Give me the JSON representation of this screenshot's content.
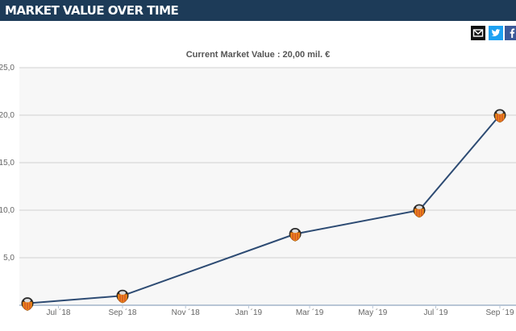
{
  "header": {
    "title": "MARKET VALUE OVER TIME"
  },
  "share": {
    "icons": [
      "mail-icon",
      "twitter-icon",
      "facebook-icon"
    ]
  },
  "colors": {
    "header": "#1d3b58",
    "line": "#2d4b73",
    "plot_bg": "#f7f7f7",
    "grid": "#d0d0d0",
    "badge_orange": "#f08a1c",
    "badge_dark": "#2b2b2b"
  },
  "chart_data": {
    "type": "line",
    "title": "Current Market Value : 20,00 mil. €",
    "xlabel": "",
    "ylabel": "",
    "ylim": [
      0,
      25
    ],
    "grid": true,
    "x_tick_labels": [
      "Jul ´18",
      "Sep ´18",
      "Nov ´18",
      "Jan ´19",
      "Mar ´19",
      "May ´19",
      "Jul ´19",
      "Sep ´19"
    ],
    "y_tick_labels": [
      "5,0",
      "10,0",
      "15,0",
      "20,0",
      "25,0"
    ],
    "series": [
      {
        "points": [
          {
            "date": "2018-06-01",
            "value": 0.2
          },
          {
            "date": "2018-09-01",
            "value": 1.0
          },
          {
            "date": "2019-02-15",
            "value": 7.5
          },
          {
            "date": "2019-06-15",
            "value": 10.0
          },
          {
            "date": "2019-09-01",
            "value": 20.0
          }
        ]
      }
    ]
  }
}
